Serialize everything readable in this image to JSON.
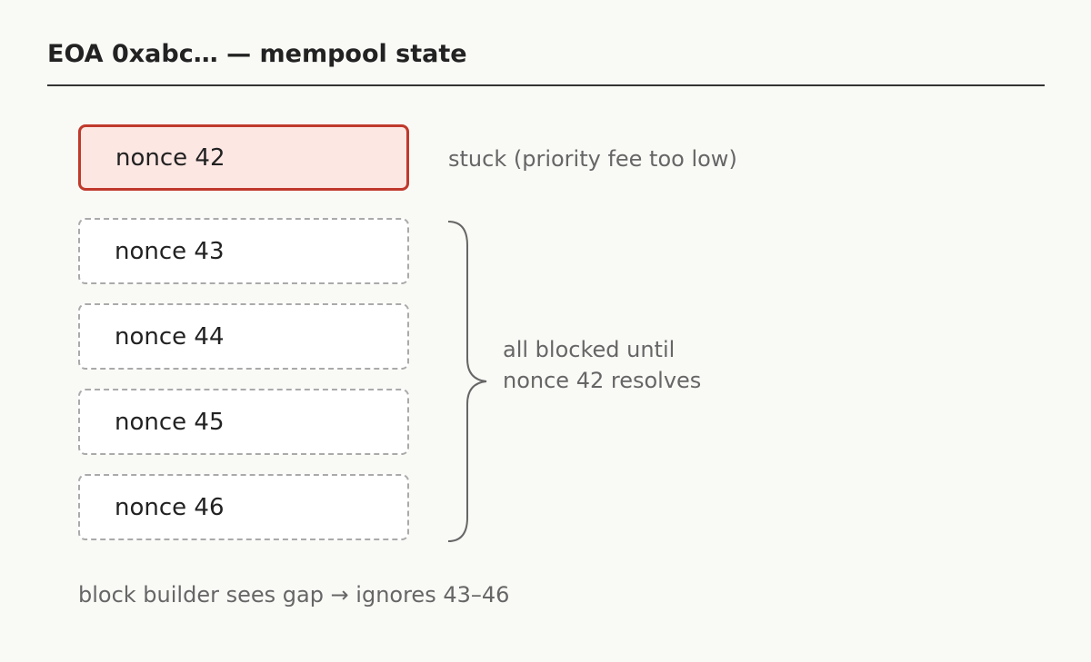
{
  "header": {
    "title": "EOA 0xabc… — mempool state"
  },
  "nodes": [
    {
      "label": "nonce 42",
      "state": "stuck"
    },
    {
      "label": "nonce 43",
      "state": "pending"
    },
    {
      "label": "nonce 44",
      "state": "pending"
    },
    {
      "label": "nonce 45",
      "state": "pending"
    },
    {
      "label": "nonce 46",
      "state": "pending"
    }
  ],
  "annotations": {
    "stuck": "stuck (priority fee too low)",
    "blocked_line1": "all blocked until",
    "blocked_line2": "nonce 42 resolves",
    "footer": "block builder sees gap → ignores 43–46"
  },
  "colors": {
    "stuck_border": "#c0392b",
    "stuck_fill": "#fde7e3",
    "pending_border": "#aaaaaa",
    "text": "#222222",
    "muted": "#666666"
  }
}
